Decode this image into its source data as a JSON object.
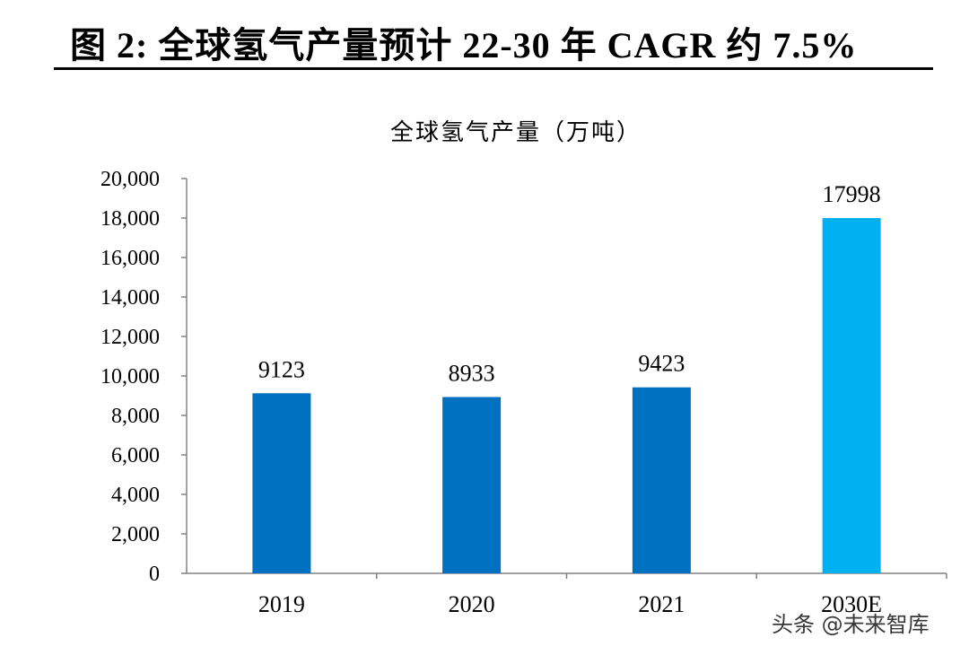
{
  "figure_title": "图 2:  全球氢气产量预计 22-30 年 CAGR 约 7.5%",
  "watermark": "头条 @未来智库",
  "chart_data": {
    "type": "bar",
    "title": "全球氢气产量（万吨）",
    "categories": [
      "2019",
      "2020",
      "2021",
      "2030E"
    ],
    "values": [
      9123,
      8933,
      9423,
      17998
    ],
    "data_labels": [
      "9123",
      "8933",
      "9423",
      "17998"
    ],
    "bar_colors": [
      "#0070C0",
      "#0070C0",
      "#0070C0",
      "#00B0F0"
    ],
    "ylim": [
      0,
      20000
    ],
    "yticks": [
      0,
      2000,
      4000,
      6000,
      8000,
      10000,
      12000,
      14000,
      16000,
      18000,
      20000
    ],
    "ytick_labels": [
      "0",
      "2,000",
      "4,000",
      "6,000",
      "8,000",
      "10,000",
      "12,000",
      "14,000",
      "16,000",
      "18,000",
      "20,000"
    ],
    "grid": false,
    "legend": "none"
  }
}
